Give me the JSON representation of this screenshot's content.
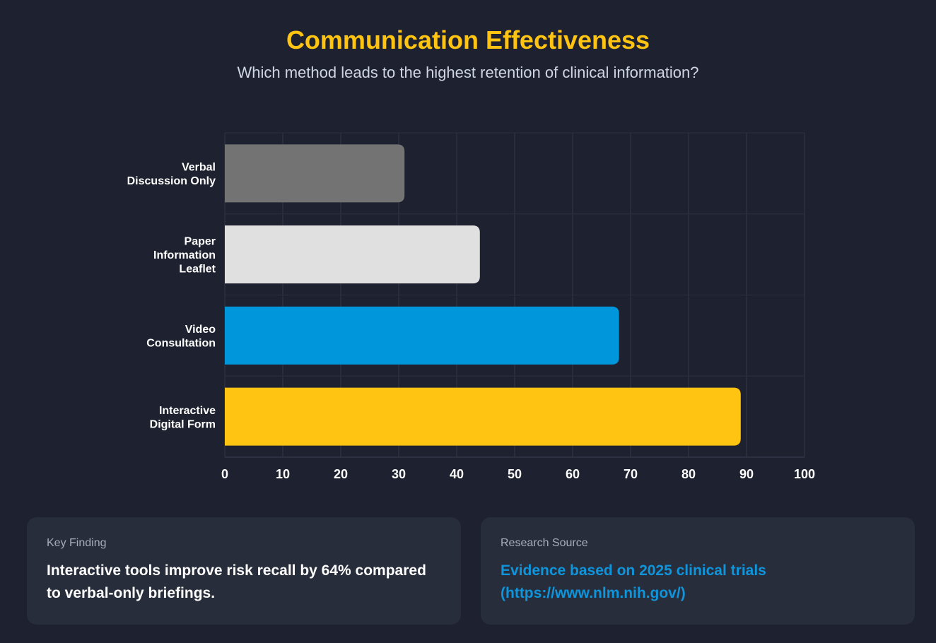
{
  "header": {
    "title": "Communication Effectiveness",
    "subtitle": "Which method leads to the highest retention of clinical information?"
  },
  "chart_data": {
    "type": "bar",
    "orientation": "horizontal",
    "title": "Communication Effectiveness",
    "subtitle": "Which method leads to the highest retention of clinical information?",
    "xlabel": "",
    "ylabel": "",
    "xlim": [
      0,
      100
    ],
    "x_ticks": [
      "0",
      "10",
      "20",
      "30",
      "40",
      "50",
      "60",
      "70",
      "80",
      "90",
      "100"
    ],
    "grid": true,
    "categories": [
      [
        "Verbal",
        "Discussion Only"
      ],
      [
        "Paper",
        "Information",
        "Leaflet"
      ],
      [
        "Video",
        "Consultation"
      ],
      [
        "Interactive",
        "Digital Form"
      ]
    ],
    "values": [
      31,
      44,
      68,
      89
    ],
    "colors": [
      "#737373",
      "#e0e0e0",
      "#0096db",
      "#ffc312"
    ]
  },
  "cards": {
    "finding": {
      "label": "Key Finding",
      "text": "Interactive tools improve risk recall by 64% compared to verbal-only briefings."
    },
    "source": {
      "label": "Research Source",
      "text": "Evidence based on 2025 clinical trials (https://www.nlm.nih.gov/)"
    }
  }
}
